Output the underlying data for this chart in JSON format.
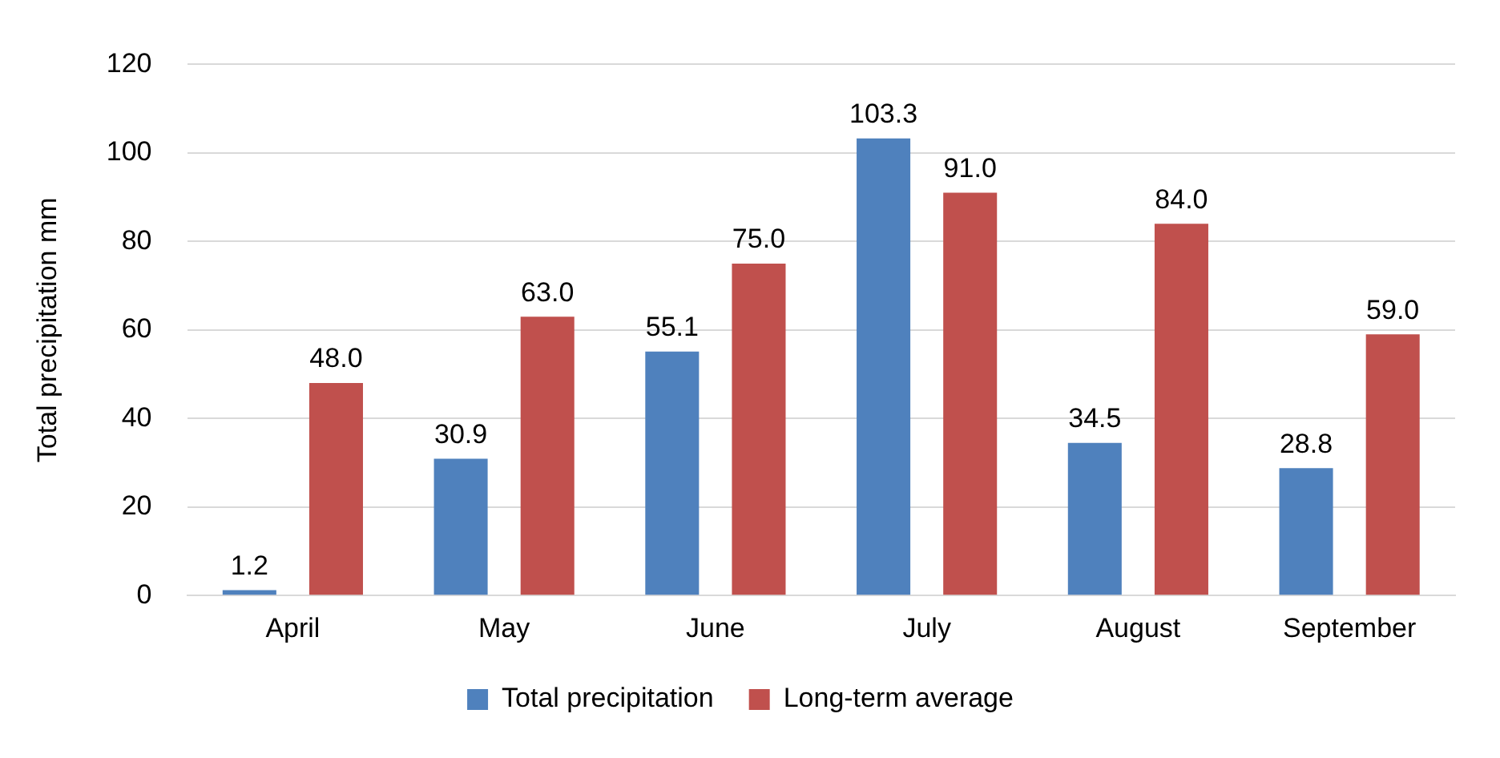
{
  "chart_data": {
    "type": "bar",
    "ylabel": "Total precipitation mm",
    "categories": [
      "April",
      "May",
      "June",
      "July",
      "August",
      "September"
    ],
    "series": [
      {
        "name": "Total precipitation",
        "color": "#4f81bd",
        "values": [
          1.2,
          30.9,
          55.1,
          103.3,
          34.5,
          28.8
        ]
      },
      {
        "name": "Long-term average",
        "color": "#c0504d",
        "values": [
          48.0,
          63.0,
          75.0,
          91.0,
          84.0,
          59.0
        ]
      }
    ],
    "value_labels": [
      [
        "1.2",
        "30.9",
        "55.1",
        "103.3",
        "34.5",
        "28.8"
      ],
      [
        "48.0",
        "63.0",
        "75.0",
        "91.0",
        "84.0",
        "59.0"
      ]
    ],
    "ylim": [
      0,
      120
    ],
    "yticks": [
      0,
      20,
      40,
      60,
      80,
      100,
      120
    ],
    "grid": "y",
    "legend": "bottom"
  }
}
